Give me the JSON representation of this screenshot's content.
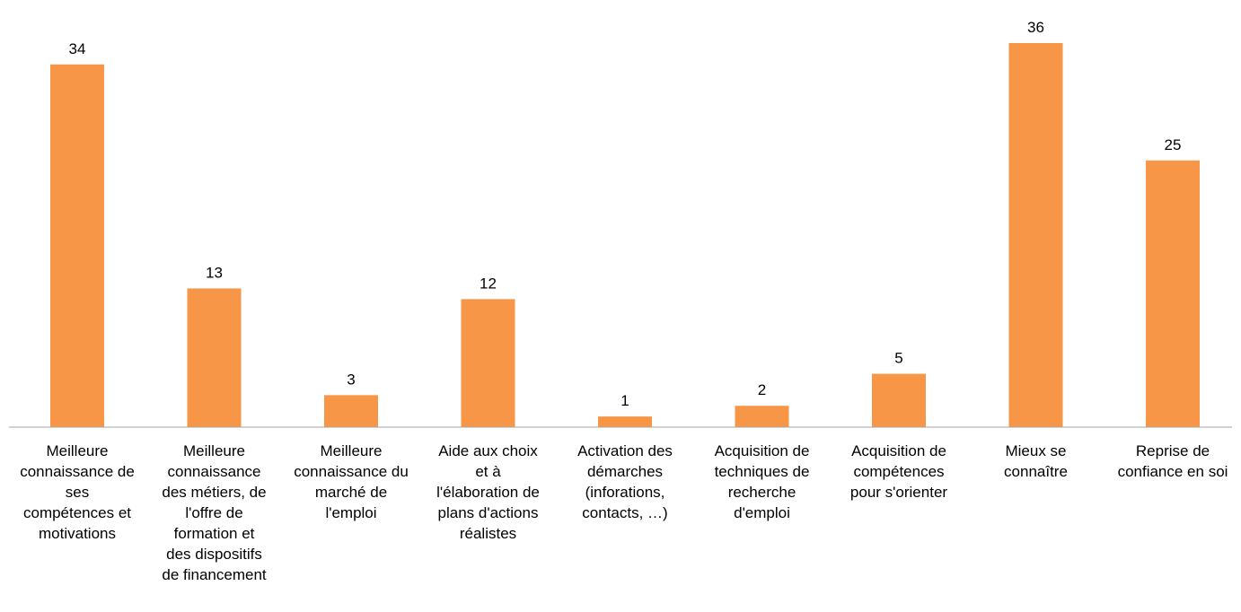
{
  "chart_data": {
    "type": "bar",
    "categories": [
      "Meilleure connaissance de ses compétences et motivations",
      "Meilleure connaissance des métiers, de l'offre de formation et des dispositifs de financement",
      "Meilleure connaissance du marché de l'emploi",
      "Aide aux choix et à l'élaboration de plans d'actions réalistes",
      "Activation des démarches (inforations, contacts, …)",
      "Acquisition de techniques de recherche d'emploi",
      "Acquisition de compétences pour s'orienter",
      "Mieux se connaître",
      "Reprise de confiance en soi"
    ],
    "category_lines": [
      [
        "Meilleure",
        "connaissance de",
        "ses",
        "compétences et",
        "motivations"
      ],
      [
        "Meilleure",
        "connaissance",
        "des métiers, de",
        "l'offre de",
        "formation et",
        "des dispositifs",
        "de financement"
      ],
      [
        "Meilleure",
        "connaissance du",
        "marché de",
        "l'emploi"
      ],
      [
        "Aide aux choix",
        "et à",
        "l'élaboration de",
        "plans d'actions",
        "réalistes"
      ],
      [
        "Activation des",
        "démarches",
        "(inforations,",
        "contacts, …)"
      ],
      [
        "Acquisition de",
        "techniques de",
        "recherche",
        "d'emploi"
      ],
      [
        "Acquisition de",
        "compétences",
        "pour s'orienter"
      ],
      [
        "Mieux se",
        "connaître"
      ],
      [
        "Reprise de",
        "confiance en soi"
      ]
    ],
    "values": [
      34,
      13,
      3,
      12,
      1,
      2,
      5,
      36,
      25
    ],
    "data_labels": [
      "34",
      "13",
      "3",
      "12",
      "1",
      "2",
      "5",
      "36",
      "25"
    ],
    "ylim": [
      0,
      36
    ],
    "grid": false,
    "legend": "none",
    "colors": {
      "bar": "#F79646",
      "axis": "#a6a6a6"
    }
  }
}
